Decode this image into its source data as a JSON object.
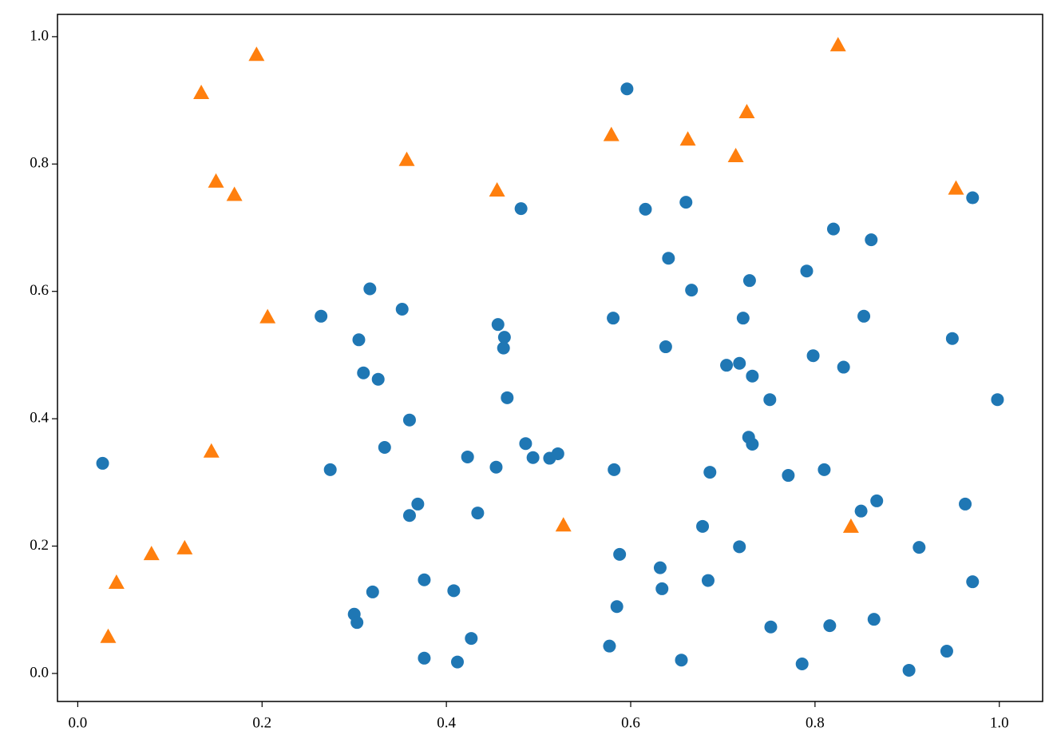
{
  "chart_data": {
    "type": "scatter",
    "series": [
      {
        "color": "#1f77b4",
        "marker": "circle",
        "x": [
          0.027,
          0.596,
          0.481,
          0.616,
          0.66,
          0.641,
          0.666,
          0.729,
          0.82,
          0.861,
          0.971,
          0.791,
          0.317,
          0.352,
          0.264,
          0.581,
          0.722,
          0.853,
          0.456,
          0.463,
          0.462,
          0.305,
          0.638,
          0.949,
          0.31,
          0.326,
          0.704,
          0.718,
          0.732,
          0.798,
          0.831,
          0.466,
          0.751,
          0.998,
          0.36,
          0.333,
          0.486,
          0.728,
          0.732,
          0.423,
          0.494,
          0.512,
          0.521,
          0.454,
          0.274,
          0.582,
          0.686,
          0.771,
          0.81,
          0.369,
          0.36,
          0.434,
          0.867,
          0.85,
          0.963,
          0.678,
          0.718,
          0.913,
          0.588,
          0.632,
          0.634,
          0.684,
          0.376,
          0.32,
          0.408,
          0.971,
          0.3,
          0.303,
          0.585,
          0.864,
          0.752,
          0.816,
          0.427,
          0.577,
          0.943,
          0.376,
          0.412,
          0.655,
          0.786,
          0.902
        ],
        "values": [
          0.33,
          0.918,
          0.73,
          0.729,
          0.74,
          0.652,
          0.602,
          0.617,
          0.698,
          0.681,
          0.747,
          0.632,
          0.604,
          0.572,
          0.561,
          0.558,
          0.558,
          0.561,
          0.548,
          0.528,
          0.511,
          0.524,
          0.513,
          0.526,
          0.472,
          0.462,
          0.484,
          0.487,
          0.467,
          0.499,
          0.481,
          0.433,
          0.43,
          0.43,
          0.398,
          0.355,
          0.361,
          0.371,
          0.36,
          0.34,
          0.339,
          0.338,
          0.345,
          0.324,
          0.32,
          0.32,
          0.316,
          0.311,
          0.32,
          0.266,
          0.248,
          0.252,
          0.271,
          0.255,
          0.266,
          0.231,
          0.199,
          0.198,
          0.187,
          0.166,
          0.133,
          0.146,
          0.147,
          0.128,
          0.13,
          0.144,
          0.093,
          0.08,
          0.105,
          0.085,
          0.073,
          0.075,
          0.055,
          0.043,
          0.035,
          0.024,
          0.018,
          0.021,
          0.015,
          0.005
        ]
      },
      {
        "color": "#ff7f0e",
        "marker": "triangle",
        "x": [
          0.194,
          0.134,
          0.825,
          0.726,
          0.579,
          0.662,
          0.714,
          0.357,
          0.15,
          0.17,
          0.455,
          0.953,
          0.206,
          0.145,
          0.527,
          0.839,
          0.08,
          0.116,
          0.042,
          0.033
        ],
        "values": [
          0.972,
          0.912,
          0.987,
          0.882,
          0.846,
          0.839,
          0.813,
          0.807,
          0.773,
          0.752,
          0.759,
          0.762,
          0.56,
          0.349,
          0.233,
          0.231,
          0.188,
          0.197,
          0.143,
          0.058
        ]
      }
    ],
    "xlim": [
      -0.022,
      1.047
    ],
    "ylim": [
      -0.044,
      1.035
    ],
    "xticks": [
      {
        "value": 0,
        "label": "0.0"
      },
      {
        "value": 0.2,
        "label": "0.2"
      },
      {
        "value": 0.4,
        "label": "0.4"
      },
      {
        "value": 0.6,
        "label": "0.6"
      },
      {
        "value": 0.8,
        "label": "0.8"
      },
      {
        "value": 1,
        "label": "1.0"
      }
    ],
    "yticks": [
      {
        "value": 0,
        "label": "0.0"
      },
      {
        "value": 0.2,
        "label": "0.2"
      },
      {
        "value": 0.4,
        "label": "0.4"
      },
      {
        "value": 0.6,
        "label": "0.6"
      },
      {
        "value": 0.8,
        "label": "0.8"
      },
      {
        "value": 1,
        "label": "1.0"
      }
    ],
    "grid": false
  }
}
